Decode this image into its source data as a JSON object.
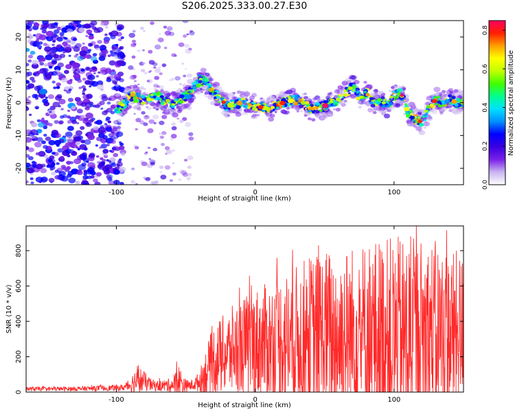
{
  "title": "S206.2025.333.00.27.E30",
  "chart_data": [
    {
      "type": "heatmap",
      "xlabel": "Height of straight line (km)",
      "ylabel": "Frequency (Hz)",
      "xlim": [
        -165,
        150
      ],
      "ylim": [
        -25,
        25
      ],
      "xticks": [
        -100,
        0,
        100
      ],
      "yticks": [
        -20,
        -10,
        0,
        10,
        20
      ],
      "ridge": {
        "x": [
          -100,
          -90,
          -80,
          -70,
          -60,
          -50,
          -45,
          -40,
          -35,
          -30,
          -20,
          -10,
          0,
          10,
          20,
          30,
          40,
          50,
          60,
          65,
          70,
          75,
          80,
          85,
          90,
          95,
          100,
          105,
          110,
          115,
          120,
          125,
          130,
          135,
          140,
          145,
          150
        ],
        "y": [
          -3,
          2,
          1,
          2,
          -1,
          2,
          4,
          7,
          6,
          3,
          -1,
          0,
          -1,
          -2,
          0,
          1,
          -2,
          -1,
          1,
          3,
          5,
          2,
          3,
          0,
          1,
          -1,
          2,
          3,
          -3,
          -5,
          -6,
          -2,
          1,
          0,
          1,
          0,
          0
        ]
      },
      "colorbar": {
        "label": "Normalized spectral amplitude",
        "range": [
          0,
          0.85
        ],
        "ticks": [
          "0.0",
          "0.2",
          "0.4",
          "0.6",
          "0.8"
        ],
        "colors": [
          "#ffffff",
          "#c8b4f0",
          "#7a20e8",
          "#3a00e0",
          "#0000ff",
          "#0090ff",
          "#00e0ff",
          "#00ff90",
          "#40ff00",
          "#c0ff00",
          "#ffff00",
          "#ffa000",
          "#ff2000",
          "#ff0060"
        ]
      }
    },
    {
      "type": "line",
      "xlabel": "Height of straight line (km)",
      "ylabel": "SNR (10 * v/v)",
      "xlim": [
        -165,
        150
      ],
      "ylim": [
        0,
        940
      ],
      "xticks": [
        -100,
        0,
        100
      ],
      "yticks": [
        0,
        200,
        400,
        600,
        800
      ],
      "series": [
        {
          "name": "SNR",
          "color": "#ff2a2a",
          "envelope": {
            "x": [
              -165,
              -140,
              -120,
              -95,
              -90,
              -85,
              -80,
              -75,
              -70,
              -60,
              -55,
              -50,
              -45,
              -40,
              -35,
              -30,
              -25,
              -20,
              -15,
              -10,
              -5,
              0,
              10,
              20,
              30,
              40,
              50,
              60,
              70,
              80,
              90,
              100,
              110,
              120,
              130,
              140,
              150
            ],
            "base": [
              18,
              18,
              20,
              25,
              40,
              70,
              60,
              40,
              35,
              40,
              60,
              35,
              40,
              60,
              120,
              180,
              200,
              220,
              240,
              250,
              260,
              270,
              280,
              300,
              300,
              300,
              310,
              310,
              320,
              330,
              320,
              300,
              320,
              320,
              340,
              330,
              330
            ],
            "amp": [
              12,
              12,
              14,
              18,
              40,
              90,
              60,
              35,
              30,
              40,
              100,
              35,
              30,
              60,
              140,
              200,
              220,
              240,
              260,
              280,
              300,
              320,
              340,
              380,
              420,
              480,
              500,
              520,
              520,
              540,
              560,
              580,
              560,
              560,
              520,
              480,
              460
            ]
          }
        }
      ]
    }
  ]
}
